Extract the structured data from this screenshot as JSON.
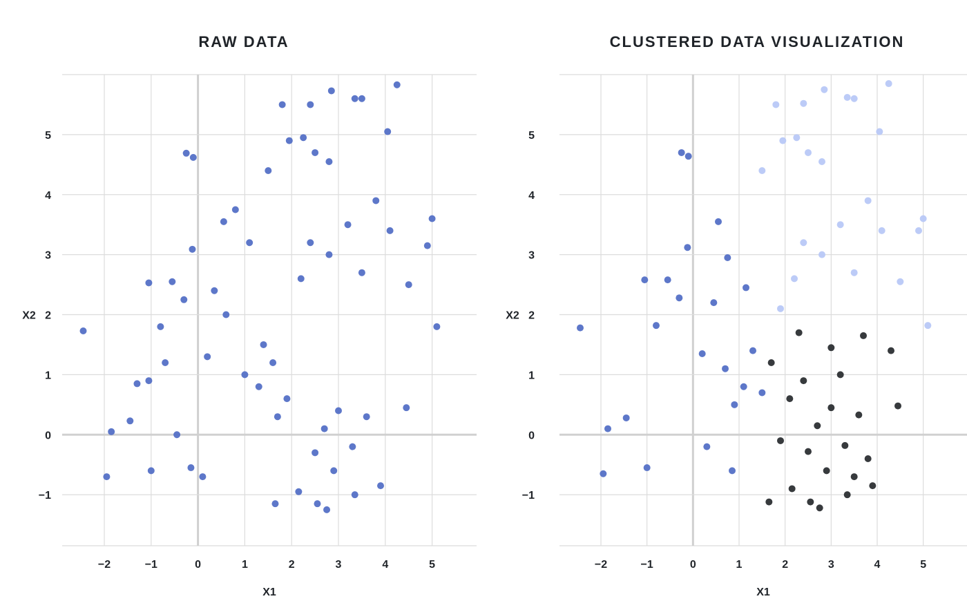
{
  "chart_data": [
    {
      "type": "scatter",
      "title": "RAW DATA",
      "xlabel": "X1",
      "ylabel": "X2",
      "xlim": [
        -2.9,
        5.95
      ],
      "ylim": [
        -1.85,
        6.0
      ],
      "xticks": [
        -2,
        -1,
        0,
        1,
        2,
        3,
        4,
        5
      ],
      "xtick_labels": [
        "−2",
        "−1",
        "0",
        "1",
        "2",
        "3",
        "4",
        "5"
      ],
      "yticks": [
        -1,
        0,
        1,
        2,
        3,
        4,
        5
      ],
      "ytick_labels": [
        "−1",
        "0",
        "1",
        "2",
        "3",
        "4",
        "5"
      ],
      "grid": true,
      "legend": "none",
      "series": [
        {
          "color": "#5470c6",
          "points": [
            [
              -2.45,
              1.73
            ],
            [
              -1.95,
              -0.7
            ],
            [
              -1.85,
              0.05
            ],
            [
              -1.45,
              0.23
            ],
            [
              -1.05,
              2.53
            ],
            [
              -1.0,
              -0.6
            ],
            [
              -0.25,
              4.69
            ],
            [
              -0.1,
              4.62
            ],
            [
              -0.12,
              3.09
            ],
            [
              -0.8,
              1.8
            ],
            [
              -0.55,
              2.55
            ],
            [
              -0.3,
              2.25
            ],
            [
              4.25,
              5.83
            ],
            [
              2.85,
              5.73
            ],
            [
              3.35,
              5.6
            ],
            [
              3.5,
              5.6
            ],
            [
              2.4,
              5.5
            ],
            [
              1.8,
              5.5
            ],
            [
              4.05,
              5.05
            ],
            [
              1.95,
              4.9
            ],
            [
              2.25,
              4.95
            ],
            [
              2.8,
              4.55
            ],
            [
              2.5,
              4.7
            ],
            [
              1.5,
              4.4
            ],
            [
              4.9,
              3.15
            ],
            [
              5.1,
              1.8
            ],
            [
              4.45,
              0.45
            ],
            [
              5.0,
              3.6
            ],
            [
              4.5,
              2.5
            ],
            [
              4.1,
              3.4
            ],
            [
              2.75,
              -1.25
            ],
            [
              2.55,
              -1.15
            ],
            [
              1.65,
              -1.15
            ],
            [
              3.35,
              -1.0
            ],
            [
              2.15,
              -0.95
            ],
            [
              3.9,
              -0.85
            ],
            [
              -0.7,
              1.2
            ],
            [
              -1.3,
              0.85
            ],
            [
              -1.05,
              0.9
            ],
            [
              -0.45,
              0.0
            ],
            [
              -0.15,
              -0.55
            ],
            [
              0.1,
              -0.7
            ],
            [
              0.55,
              3.55
            ],
            [
              0.8,
              3.75
            ],
            [
              1.1,
              3.2
            ],
            [
              0.35,
              2.4
            ],
            [
              0.6,
              2.0
            ],
            [
              0.2,
              1.3
            ],
            [
              1.3,
              0.8
            ],
            [
              1.6,
              1.2
            ],
            [
              1.9,
              0.6
            ],
            [
              1.4,
              1.5
            ],
            [
              1.0,
              1.0
            ],
            [
              1.7,
              0.3
            ],
            [
              2.7,
              0.1
            ],
            [
              3.0,
              0.4
            ],
            [
              2.5,
              -0.3
            ],
            [
              3.3,
              -0.2
            ],
            [
              2.9,
              -0.6
            ],
            [
              3.6,
              0.3
            ],
            [
              2.8,
              3.0
            ],
            [
              3.2,
              3.5
            ],
            [
              3.5,
              2.7
            ],
            [
              2.4,
              3.2
            ],
            [
              3.8,
              3.9
            ],
            [
              2.2,
              2.6
            ]
          ]
        }
      ]
    },
    {
      "type": "scatter",
      "title": "CLUSTERED DATA VISUALIZATION",
      "xlabel": "X1",
      "ylabel": "X2",
      "xlim": [
        -2.9,
        5.95
      ],
      "ylim": [
        -1.85,
        6.0
      ],
      "xticks": [
        -2,
        -1,
        0,
        1,
        2,
        3,
        4,
        5
      ],
      "xtick_labels": [
        "−2",
        "−1",
        "0",
        "1",
        "2",
        "3",
        "4",
        "5"
      ],
      "yticks": [
        -1,
        0,
        1,
        2,
        3,
        4,
        5
      ],
      "ytick_labels": [
        "−1",
        "0",
        "1",
        "2",
        "3",
        "4",
        "5"
      ],
      "grid": true,
      "legend": "none",
      "series": [
        {
          "color": "#5470c6",
          "points": [
            [
              -2.45,
              1.78
            ],
            [
              -1.95,
              -0.65
            ],
            [
              -1.85,
              0.1
            ],
            [
              -1.45,
              0.28
            ],
            [
              -1.05,
              2.58
            ],
            [
              -1.0,
              -0.55
            ],
            [
              -0.25,
              4.7
            ],
            [
              -0.1,
              4.64
            ],
            [
              -0.12,
              3.12
            ],
            [
              -0.8,
              1.82
            ],
            [
              -0.55,
              2.58
            ],
            [
              -0.3,
              2.28
            ],
            [
              0.55,
              3.55
            ],
            [
              0.75,
              2.95
            ],
            [
              1.15,
              2.45
            ],
            [
              0.45,
              2.2
            ],
            [
              0.2,
              1.35
            ],
            [
              0.7,
              1.1
            ],
            [
              1.1,
              0.8
            ],
            [
              1.3,
              1.4
            ],
            [
              0.9,
              0.5
            ],
            [
              1.5,
              0.7
            ],
            [
              0.3,
              -0.2
            ],
            [
              0.85,
              -0.6
            ]
          ]
        },
        {
          "color": "#b8c8f7",
          "points": [
            [
              4.25,
              5.85
            ],
            [
              2.85,
              5.75
            ],
            [
              3.35,
              5.62
            ],
            [
              3.5,
              5.6
            ],
            [
              2.4,
              5.52
            ],
            [
              1.8,
              5.5
            ],
            [
              4.05,
              5.05
            ],
            [
              1.95,
              4.9
            ],
            [
              2.25,
              4.95
            ],
            [
              2.8,
              4.55
            ],
            [
              2.5,
              4.7
            ],
            [
              1.5,
              4.4
            ],
            [
              4.9,
              3.4
            ],
            [
              5.1,
              1.82
            ],
            [
              5.0,
              3.6
            ],
            [
              4.5,
              2.55
            ],
            [
              4.1,
              3.4
            ],
            [
              3.8,
              3.9
            ],
            [
              2.8,
              3.0
            ],
            [
              3.2,
              3.5
            ],
            [
              3.5,
              2.7
            ],
            [
              2.4,
              3.2
            ],
            [
              2.2,
              2.6
            ],
            [
              1.9,
              2.1
            ]
          ]
        },
        {
          "color": "#2c2f33",
          "points": [
            [
              2.75,
              -1.22
            ],
            [
              2.55,
              -1.12
            ],
            [
              1.65,
              -1.12
            ],
            [
              3.35,
              -1.0
            ],
            [
              2.15,
              -0.9
            ],
            [
              3.9,
              -0.85
            ],
            [
              4.45,
              0.48
            ],
            [
              4.3,
              1.4
            ],
            [
              3.7,
              1.65
            ],
            [
              3.0,
              1.45
            ],
            [
              2.3,
              1.7
            ],
            [
              1.7,
              1.2
            ],
            [
              2.7,
              0.15
            ],
            [
              3.0,
              0.45
            ],
            [
              2.5,
              -0.28
            ],
            [
              3.3,
              -0.18
            ],
            [
              2.9,
              -0.6
            ],
            [
              3.6,
              0.33
            ],
            [
              2.1,
              0.6
            ],
            [
              3.8,
              -0.4
            ],
            [
              2.4,
              0.9
            ],
            [
              3.2,
              1.0
            ],
            [
              1.9,
              -0.1
            ],
            [
              3.5,
              -0.7
            ]
          ]
        }
      ]
    }
  ]
}
